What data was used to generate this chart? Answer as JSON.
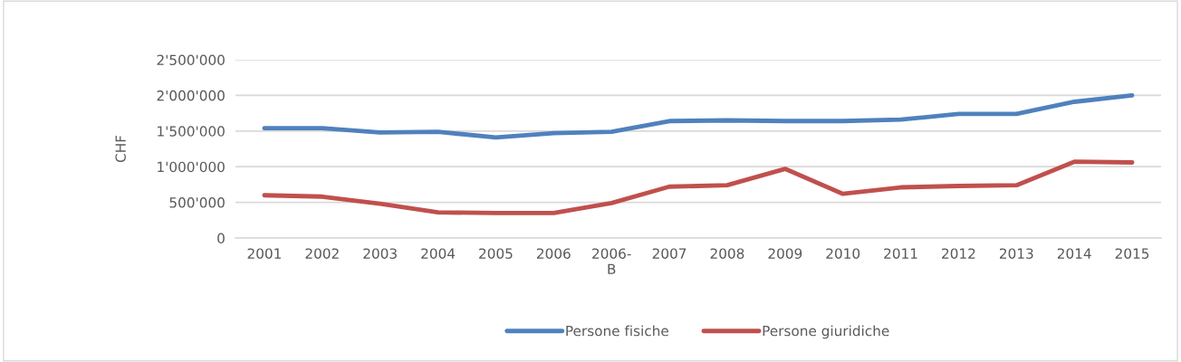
{
  "chart_data": {
    "type": "line",
    "ylabel": "CHF",
    "categories": [
      "2001",
      "2002",
      "2003",
      "2004",
      "2005",
      "2006",
      "2006-\nB",
      "2007",
      "2008",
      "2009",
      "2010",
      "2011",
      "2012",
      "2013",
      "2014",
      "2015"
    ],
    "series": [
      {
        "name": "Persone fisiche",
        "color": "#4f81bd",
        "values": [
          1540000,
          1540000,
          1480000,
          1490000,
          1410000,
          1470000,
          1490000,
          1640000,
          1650000,
          1640000,
          1640000,
          1660000,
          1740000,
          1740000,
          1910000,
          2000000
        ]
      },
      {
        "name": "Persone giuridiche",
        "color": "#c0504d",
        "values": [
          600000,
          580000,
          480000,
          360000,
          350000,
          350000,
          490000,
          720000,
          740000,
          970000,
          620000,
          710000,
          730000,
          740000,
          1070000,
          1060000
        ]
      }
    ],
    "ylim": [
      0,
      2500000
    ],
    "yticks": [
      {
        "value": 0,
        "label": "0"
      },
      {
        "value": 500000,
        "label": "500'000"
      },
      {
        "value": 1000000,
        "label": "1'000'000"
      },
      {
        "value": 1500000,
        "label": "1'500'000"
      },
      {
        "value": 2000000,
        "label": "2'000'000"
      },
      {
        "value": 2500000,
        "label": "2'500'000"
      }
    ],
    "grid": "y",
    "legend": "bottom",
    "marker": "none",
    "line_style": "solid"
  }
}
